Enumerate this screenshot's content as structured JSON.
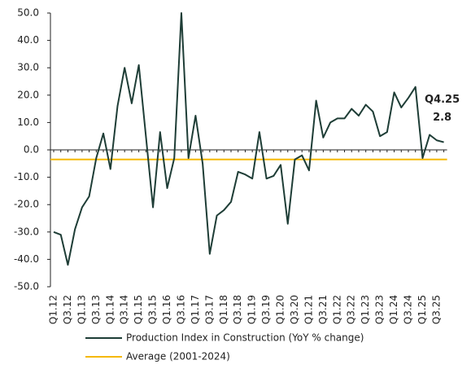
{
  "chart_data": {
    "type": "line",
    "categories": [
      "Q1.12",
      null,
      "Q3.12",
      null,
      "Q1.13",
      null,
      "Q3.13",
      null,
      "Q1.14",
      null,
      "Q3.14",
      null,
      "Q1.15",
      null,
      "Q3.15",
      null,
      "Q1.16",
      null,
      "Q3.16",
      null,
      "Q1.17",
      null,
      "Q3.17",
      null,
      "Q1.18",
      null,
      "Q3.18",
      null,
      "Q1.19",
      null,
      "Q3.19",
      null,
      "Q1.20",
      null,
      "Q3.20",
      null,
      "Q1.21",
      null,
      "Q3.21",
      null,
      "Q1.22",
      null,
      "Q3.22",
      null,
      "Q1.23",
      null,
      "Q3.23",
      null,
      "Q1.24",
      null,
      "Q3.24",
      null,
      "Q1.25",
      null,
      "Q3.25",
      null
    ],
    "series": [
      {
        "name": "Production Index in Construction (YoY % change)",
        "color": "#1e3d36",
        "values": [
          -30,
          -31,
          -42,
          -29,
          -21,
          -17,
          -3,
          6,
          -7,
          16,
          30,
          17,
          31,
          5,
          -21,
          6.5,
          -14,
          -3,
          50,
          -3,
          12.5,
          -5,
          -38,
          -24,
          -22,
          -19,
          -8,
          -9,
          -10.5,
          6.5,
          -10.5,
          -9.5,
          -5.5,
          -27,
          -3.5,
          -2,
          -7.5,
          18,
          4.5,
          10,
          11.5,
          11.5,
          15,
          12.5,
          16.5,
          14,
          5,
          6.5,
          21,
          15.5,
          19,
          23,
          -3,
          5.5,
          3.5,
          2.8
        ]
      }
    ],
    "reference_line": {
      "name": "Average (2001-2024)",
      "color": "#f5b800",
      "value": -3.5
    },
    "annotation": "Q4.25",
    "ylim": [
      -50,
      50
    ],
    "yticks": [
      {
        "value": -50,
        "label": "-50.0"
      },
      {
        "value": -40,
        "label": "-40.0"
      },
      {
        "value": -30,
        "label": "-30.0"
      },
      {
        "value": -20,
        "label": "-20.0"
      },
      {
        "value": -10,
        "label": "-10.0"
      },
      {
        "value": 0,
        "label": "0.0"
      },
      {
        "value": 10,
        "label": "10.0"
      },
      {
        "value": 20,
        "label": "20.0"
      },
      {
        "value": 30,
        "label": "30.0"
      },
      {
        "value": 40,
        "label": "40.0"
      },
      {
        "value": 50,
        "label": "50.0"
      }
    ]
  }
}
